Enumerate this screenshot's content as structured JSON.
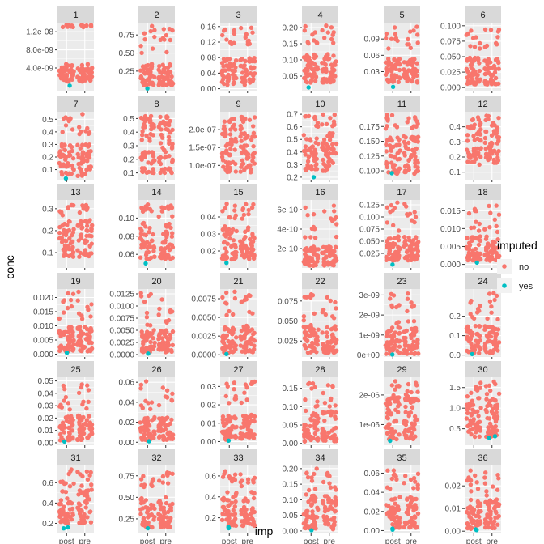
{
  "chart_data": {
    "type": "scatter",
    "xlabel": "imp",
    "ylabel": "conc",
    "x_categories": [
      "post",
      "pre"
    ],
    "legend": {
      "title": "imputed",
      "position": "right",
      "entries": [
        {
          "label": "no",
          "color": "#F8766D"
        },
        {
          "label": "yes",
          "color": "#00BFC4"
        }
      ]
    },
    "grid": true,
    "colors": {
      "no": "#F8766D",
      "yes": "#00BFC4",
      "panel_bg": "#EBEBEB",
      "strip_bg": "#D9D9D9"
    },
    "panels": [
      {
        "title": "1",
        "ylim": [
          -1e-09,
          1.4e-08
        ],
        "yticks": [
          4e-09,
          8e-09,
          1.2e-08
        ],
        "yticklabels": [
          "4.0e-09",
          "8.0e-09",
          "1.2e-08"
        ],
        "base": [
          1e-09,
          5e-09
        ],
        "top": [
          1.3e-08,
          1.35e-08
        ],
        "yes": [
          [
            1,
            1e-10
          ]
        ]
      },
      {
        "title": "2",
        "ylim": [
          -0.02,
          0.92
        ],
        "yticks": [
          0.25,
          0.5,
          0.75
        ],
        "yticklabels": [
          "0.25",
          "0.50",
          "0.75"
        ],
        "base": [
          0.05,
          0.35
        ],
        "top": [
          0.5,
          0.88
        ],
        "yes": [
          [
            1,
            0.01
          ]
        ]
      },
      {
        "title": "3",
        "ylim": [
          -0.005,
          0.17
        ],
        "yticks": [
          0,
          0.04,
          0.08,
          0.12,
          0.16
        ],
        "yticklabels": [
          "0.00",
          "0.04",
          "0.08",
          "0.12",
          "0.16"
        ],
        "base": [
          0.01,
          0.08
        ],
        "top": [
          0.11,
          0.16
        ],
        "yes": []
      },
      {
        "title": "4",
        "ylim": [
          0.005,
          0.215
        ],
        "yticks": [
          0.05,
          0.1,
          0.15,
          0.2
        ],
        "yticklabels": [
          "0.05",
          "0.10",
          "0.15",
          "0.20"
        ],
        "base": [
          0.03,
          0.12
        ],
        "top": [
          0.15,
          0.21
        ],
        "yes": [
          [
            1,
            0.015
          ]
        ]
      },
      {
        "title": "5",
        "ylim": [
          -0.005,
          0.12
        ],
        "yticks": [
          0.03,
          0.06,
          0.09
        ],
        "yticklabels": [
          "0.03",
          "0.06",
          "0.09"
        ],
        "base": [
          0.01,
          0.055
        ],
        "top": [
          0.07,
          0.115
        ],
        "yes": [
          [
            1,
            0.002
          ]
        ]
      },
      {
        "title": "6",
        "ylim": [
          -0.005,
          0.105
        ],
        "yticks": [
          0,
          0.025,
          0.05,
          0.075,
          0.1
        ],
        "yticklabels": [
          "0.000",
          "0.025",
          "0.050",
          "0.075",
          "0.100"
        ],
        "base": [
          0.005,
          0.05
        ],
        "top": [
          0.06,
          0.1
        ],
        "yes": []
      },
      {
        "title": "7",
        "ylim": [
          0.02,
          0.56
        ],
        "yticks": [
          0.1,
          0.2,
          0.3,
          0.4,
          0.5
        ],
        "yticklabels": [
          "0.1",
          "0.2",
          "0.3",
          "0.4",
          "0.5"
        ],
        "base": [
          0.05,
          0.3
        ],
        "top": [
          0.35,
          0.55
        ],
        "yes": [
          [
            1,
            0.03
          ]
        ]
      },
      {
        "title": "8",
        "ylim": [
          0.05,
          0.55
        ],
        "yticks": [
          0.1,
          0.2,
          0.3,
          0.4,
          0.5
        ],
        "yticklabels": [
          "0.1",
          "0.2",
          "0.3",
          "0.4",
          "0.5"
        ],
        "base": [
          0.1,
          0.5
        ],
        "top": [
          0.45,
          0.52
        ],
        "yes": []
      },
      {
        "title": "9",
        "ylim": [
          6e-08,
          2.5e-07
        ],
        "yticks": [
          1e-07,
          1.5e-07,
          2e-07
        ],
        "yticklabels": [
          "1.0e-07",
          "1.5e-07",
          "2.0e-07"
        ],
        "base": [
          8e-08,
          2.1e-07
        ],
        "top": [
          2e-07,
          2.4e-07
        ],
        "yes": []
      },
      {
        "title": "10",
        "ylim": [
          0.18,
          0.72
        ],
        "yticks": [
          0.2,
          0.3,
          0.4,
          0.5,
          0.6,
          0.7
        ],
        "yticklabels": [
          "0.2",
          "0.3",
          "0.4",
          "0.5",
          "0.6",
          "0.7"
        ],
        "base": [
          0.25,
          0.55
        ],
        "top": [
          0.6,
          0.7
        ],
        "yes": [
          [
            1,
            0.2
          ]
        ]
      },
      {
        "title": "11",
        "ylim": [
          0.085,
          0.2
        ],
        "yticks": [
          0.1,
          0.125,
          0.15,
          0.175
        ],
        "yticklabels": [
          "0.100",
          "0.125",
          "0.150",
          "0.175"
        ],
        "base": [
          0.095,
          0.16
        ],
        "top": [
          0.17,
          0.195
        ],
        "yes": [
          [
            1,
            0.096
          ]
        ]
      },
      {
        "title": "12",
        "ylim": [
          0.05,
          0.5
        ],
        "yticks": [
          0.1,
          0.2,
          0.3,
          0.4
        ],
        "yticklabels": [
          "0.1",
          "0.2",
          "0.3",
          "0.4"
        ],
        "base": [
          0.15,
          0.4
        ],
        "top": [
          0.4,
          0.48
        ],
        "yes": []
      },
      {
        "title": "13",
        "ylim": [
          0.03,
          0.34
        ],
        "yticks": [
          0.1,
          0.2,
          0.3
        ],
        "yticklabels": [
          "0.1",
          "0.2",
          "0.3"
        ],
        "base": [
          0.08,
          0.25
        ],
        "top": [
          0.27,
          0.32
        ],
        "yes": []
      },
      {
        "title": "14",
        "ylim": [
          0.045,
          0.12
        ],
        "yticks": [
          0.06,
          0.08,
          0.1
        ],
        "yticklabels": [
          "0.06",
          "0.08",
          "0.10"
        ],
        "base": [
          0.055,
          0.095
        ],
        "top": [
          0.1,
          0.115
        ],
        "yes": [
          [
            1,
            0.05
          ]
        ]
      },
      {
        "title": "15",
        "ylim": [
          0.01,
          0.05
        ],
        "yticks": [
          0.02,
          0.03,
          0.04
        ],
        "yticklabels": [
          "0.02",
          "0.03",
          "0.04"
        ],
        "base": [
          0.015,
          0.035
        ],
        "top": [
          0.038,
          0.048
        ],
        "yes": [
          [
            1,
            0.013
          ]
        ]
      },
      {
        "title": "16",
        "ylim": [
          0,
          7e-10
        ],
        "yticks": [
          2e-10,
          4e-10,
          6e-10
        ],
        "yticklabels": [
          "2e-10",
          "4e-10",
          "6e-10"
        ],
        "base": [
          2e-11,
          2.2e-10
        ],
        "top": [
          3e-10,
          6.5e-10
        ],
        "yes": []
      },
      {
        "title": "17",
        "ylim": [
          -0.005,
          0.135
        ],
        "yticks": [
          0.025,
          0.05,
          0.075,
          0.1,
          0.125
        ],
        "yticklabels": [
          "0.025",
          "0.050",
          "0.075",
          "0.100",
          "0.125"
        ],
        "base": [
          0.01,
          0.06
        ],
        "top": [
          0.07,
          0.13
        ],
        "yes": [
          [
            1,
            0.002
          ]
        ]
      },
      {
        "title": "18",
        "ylim": [
          -0.001,
          0.018
        ],
        "yticks": [
          0,
          0.005,
          0.01,
          0.015
        ],
        "yticklabels": [
          "0.000",
          "0.005",
          "0.010",
          "0.015"
        ],
        "base": [
          0.001,
          0.008
        ],
        "top": [
          0.009,
          0.017
        ],
        "yes": [
          [
            1,
            0.0005
          ]
        ]
      },
      {
        "title": "19",
        "ylim": [
          -0.001,
          0.023
        ],
        "yticks": [
          0,
          0.005,
          0.01,
          0.015,
          0.02
        ],
        "yticklabels": [
          "0.000",
          "0.005",
          "0.010",
          "0.015",
          "0.020"
        ],
        "base": [
          0.001,
          0.01
        ],
        "top": [
          0.012,
          0.022
        ],
        "yes": [
          [
            1,
            0.0005
          ]
        ]
      },
      {
        "title": "20",
        "ylim": [
          -0.0005,
          0.0135
        ],
        "yticks": [
          0,
          0.0025,
          0.005,
          0.0075,
          0.01,
          0.0125
        ],
        "yticklabels": [
          "0.0000",
          "0.0025",
          "0.0050",
          "0.0075",
          "0.0100",
          "0.0125"
        ],
        "base": [
          0.0005,
          0.005
        ],
        "top": [
          0.006,
          0.013
        ],
        "yes": [
          [
            1,
            0.0002
          ]
        ]
      },
      {
        "title": "21",
        "ylim": [
          -0.0003,
          0.0088
        ],
        "yticks": [
          0,
          0.0025,
          0.005,
          0.0075
        ],
        "yticklabels": [
          "0.0000",
          "0.0025",
          "0.0050",
          "0.0075"
        ],
        "base": [
          0.0003,
          0.004
        ],
        "top": [
          0.005,
          0.0085
        ],
        "yes": [
          [
            1,
            0.0001
          ]
        ]
      },
      {
        "title": "22",
        "ylim": [
          0.005,
          0.09
        ],
        "yticks": [
          0.025,
          0.05,
          0.075
        ],
        "yticklabels": [
          "0.025",
          "0.050",
          "0.075"
        ],
        "base": [
          0.01,
          0.045
        ],
        "top": [
          0.05,
          0.085
        ],
        "yes": []
      },
      {
        "title": "23",
        "ylim": [
          -1e-10,
          3.3e-09
        ],
        "yticks": [
          0,
          1e-09,
          2e-09,
          3e-09
        ],
        "yticklabels": [
          "0e+00",
          "1e-09",
          "2e-09",
          "3e-09"
        ],
        "base": [
          5e-11,
          1.4e-09
        ],
        "top": [
          1.5e-09,
          3.1e-09
        ],
        "yes": [
          [
            1,
            2e-11
          ]
        ]
      },
      {
        "title": "24",
        "ylim": [
          -0.01,
          0.34
        ],
        "yticks": [
          0,
          0.1,
          0.2
        ],
        "yticklabels": [
          "0.0",
          "0.1",
          "0.2"
        ],
        "base": [
          0.01,
          0.15
        ],
        "top": [
          0.18,
          0.33
        ],
        "yes": [
          [
            1,
            0.005
          ]
        ]
      },
      {
        "title": "25",
        "ylim": [
          -0.002,
          0.053
        ],
        "yticks": [
          0,
          0.01,
          0.02,
          0.03,
          0.04,
          0.05
        ],
        "yticklabels": [
          "0.00",
          "0.01",
          "0.02",
          "0.03",
          "0.04",
          "0.05"
        ],
        "base": [
          0.002,
          0.022
        ],
        "top": [
          0.025,
          0.048
        ],
        "yes": [
          [
            1,
            0.001
          ]
        ]
      },
      {
        "title": "26",
        "ylim": [
          -0.003,
          0.065
        ],
        "yticks": [
          0,
          0.02,
          0.04,
          0.06
        ],
        "yticklabels": [
          "0.00",
          "0.02",
          "0.04",
          "0.06"
        ],
        "base": [
          0.002,
          0.025
        ],
        "top": [
          0.03,
          0.062
        ],
        "yes": [
          [
            1,
            0.001
          ]
        ]
      },
      {
        "title": "27",
        "ylim": [
          -0.002,
          0.035
        ],
        "yticks": [
          0,
          0.01,
          0.02,
          0.03
        ],
        "yticklabels": [
          "0.00",
          "0.01",
          "0.02",
          "0.03"
        ],
        "base": [
          0.001,
          0.015
        ],
        "top": [
          0.018,
          0.033
        ],
        "yes": [
          [
            1,
            0.0005
          ]
        ]
      },
      {
        "title": "28",
        "ylim": [
          -0.005,
          0.18
        ],
        "yticks": [
          0,
          0.05,
          0.1,
          0.15
        ],
        "yticklabels": [
          "0.00",
          "0.05",
          "0.10",
          "0.15"
        ],
        "base": [
          0.005,
          0.09
        ],
        "top": [
          0.1,
          0.17
        ],
        "yes": []
      },
      {
        "title": "29",
        "ylim": [
          3e-07,
          2.6e-06
        ],
        "yticks": [
          1e-06,
          2e-06
        ],
        "yticklabels": [
          "1e-06",
          "2e-06"
        ],
        "base": [
          5e-07,
          1.9e-06
        ],
        "top": [
          1.9e-06,
          2.5e-06
        ],
        "yes": [
          [
            1,
            4.5e-07
          ]
        ]
      },
      {
        "title": "30",
        "ylim": [
          0.1,
          1.75
        ],
        "yticks": [
          0.5,
          1,
          1.5
        ],
        "yticklabels": [
          "0.5",
          "1.0",
          "1.5"
        ],
        "base": [
          0.3,
          1.2
        ],
        "top": [
          1.2,
          1.65
        ],
        "yes": [
          [
            2,
            0.28
          ],
          [
            2,
            0.32
          ]
        ]
      },
      {
        "title": "31",
        "ylim": [
          0.1,
          0.77
        ],
        "yticks": [
          0.2,
          0.4,
          0.6
        ],
        "yticklabels": [
          "0.2",
          "0.4",
          "0.6"
        ],
        "base": [
          0.2,
          0.55
        ],
        "top": [
          0.55,
          0.74
        ],
        "yes": [
          [
            1,
            0.15
          ],
          [
            1,
            0.16
          ]
        ]
      },
      {
        "title": "32",
        "ylim": [
          0.08,
          0.87
        ],
        "yticks": [
          0.25,
          0.5,
          0.75
        ],
        "yticklabels": [
          "0.25",
          "0.50",
          "0.75"
        ],
        "base": [
          0.15,
          0.5
        ],
        "top": [
          0.55,
          0.82
        ],
        "yes": [
          [
            1,
            0.14
          ]
        ]
      },
      {
        "title": "33",
        "ylim": [
          0.05,
          0.7
        ],
        "yticks": [
          0.2,
          0.4,
          0.6
        ],
        "yticklabels": [
          "0.2",
          "0.4",
          "0.6"
        ],
        "base": [
          0.12,
          0.45
        ],
        "top": [
          0.5,
          0.67
        ],
        "yes": [
          [
            1,
            0.1
          ],
          [
            1,
            0.11
          ]
        ]
      },
      {
        "title": "34",
        "ylim": [
          -0.008,
          0.21
        ],
        "yticks": [
          0,
          0.05,
          0.1,
          0.15,
          0.2
        ],
        "yticklabels": [
          "0.00",
          "0.05",
          "0.10",
          "0.15",
          "0.20"
        ],
        "base": [
          0.005,
          0.12
        ],
        "top": [
          0.13,
          0.2
        ],
        "yes": [
          [
            1,
            0.002
          ]
        ]
      },
      {
        "title": "35",
        "ylim": [
          -0.003,
          0.068
        ],
        "yticks": [
          0,
          0.02,
          0.04,
          0.06
        ],
        "yticklabels": [
          "0.00",
          "0.02",
          "0.04",
          "0.06"
        ],
        "base": [
          0.003,
          0.035
        ],
        "top": [
          0.04,
          0.063
        ],
        "yes": [
          [
            1,
            0.001
          ],
          [
            1,
            0.002
          ]
        ]
      },
      {
        "title": "36",
        "ylim": [
          -0.001,
          0.029
        ],
        "yticks": [
          0,
          0.01,
          0.02
        ],
        "yticklabels": [
          "0.00",
          "0.01",
          "0.02"
        ],
        "base": [
          0.001,
          0.014
        ],
        "top": [
          0.015,
          0.027
        ],
        "yes": [
          [
            1,
            0.0005
          ],
          [
            1,
            0.0008
          ]
        ]
      }
    ]
  }
}
